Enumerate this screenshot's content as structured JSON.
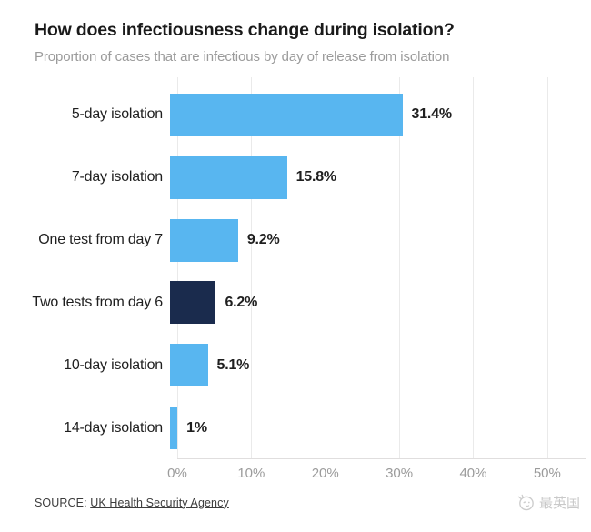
{
  "header": {
    "title": "How does infectiousness change during isolation?",
    "subtitle": "Proportion of cases that are infectious by day of release from isolation"
  },
  "chart_data": {
    "type": "bar",
    "orientation": "horizontal",
    "title": "How does infectiousness change during isolation?",
    "subtitle": "Proportion of cases that are infectious by day of release from isolation",
    "categories": [
      "5-day isolation",
      "7-day isolation",
      "One test from day 7",
      "Two tests from day 6",
      "10-day isolation",
      "14-day isolation"
    ],
    "values": [
      31.4,
      15.8,
      9.2,
      6.2,
      5.1,
      1
    ],
    "value_labels": [
      "31.4%",
      "15.8%",
      "9.2%",
      "6.2%",
      "5.1%",
      "1%"
    ],
    "bar_colors": [
      "#58b6f0",
      "#58b6f0",
      "#58b6f0",
      "#1a2b4d",
      "#58b6f0",
      "#58b6f0"
    ],
    "default_bar_color": "#58b6f0",
    "highlight_bar_color": "#1a2b4d",
    "highlighted_category": "Two tests from day 6",
    "x_tick_labels": [
      "0%",
      "10%",
      "20%",
      "30%",
      "40%",
      "50%"
    ],
    "x_tick_values": [
      0,
      10,
      20,
      30,
      40,
      50
    ],
    "xlim": [
      0,
      55.3
    ],
    "grid": "vertical",
    "legend": "none"
  },
  "footer": {
    "source_label": "SOURCE:",
    "source_link": "UK Health Security Agency",
    "watermark_text": "最英国"
  },
  "colors": {
    "background": "#ffffff",
    "title_text": "#1a1a1a",
    "subtitle_text": "#9b9b9b",
    "axis_text": "#9b9b9b",
    "gridline": "#eaeaea",
    "bar_blue": "#58b6f0",
    "bar_navy": "#1a2b4d",
    "watermark": "#c9c9c9"
  }
}
